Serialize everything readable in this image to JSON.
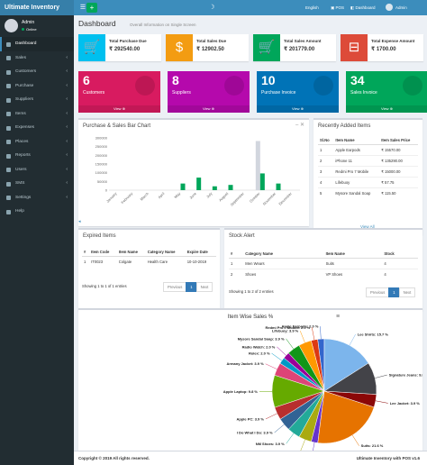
{
  "topbar": {
    "brand": "Ultimate Inventory",
    "menu_icon": "menu-icon",
    "add_icon": "plus-icon",
    "theme_icon": "moon-icon",
    "language": "English",
    "pos": "POS",
    "dashboard": "Dashboard",
    "user": "Admin"
  },
  "sidebar": {
    "user": {
      "name": "Admin",
      "status": "Online"
    },
    "items": [
      {
        "label": "Dashboard",
        "icon": "dashboard-icon",
        "chevron": ""
      },
      {
        "label": "Sales",
        "icon": "cart-icon",
        "chevron": "‹"
      },
      {
        "label": "Customers",
        "icon": "users-icon",
        "chevron": "‹"
      },
      {
        "label": "Purchase",
        "icon": "bag-icon",
        "chevron": "‹"
      },
      {
        "label": "Suppliers",
        "icon": "truck-icon",
        "chevron": "‹"
      },
      {
        "label": "Items",
        "icon": "cube-icon",
        "chevron": "‹"
      },
      {
        "label": "Expenses",
        "icon": "money-icon",
        "chevron": "‹"
      },
      {
        "label": "Places",
        "icon": "map-icon",
        "chevron": "‹"
      },
      {
        "label": "Reports",
        "icon": "chart-icon",
        "chevron": "‹"
      },
      {
        "label": "Users",
        "icon": "user-icon",
        "chevron": "‹"
      },
      {
        "label": "SMS",
        "icon": "envelope-icon",
        "chevron": "‹"
      },
      {
        "label": "Settings",
        "icon": "gear-icon",
        "chevron": "‹"
      },
      {
        "label": "Help",
        "icon": "help-icon",
        "chevron": ""
      }
    ]
  },
  "header": {
    "title": "Dashboard",
    "subtitle": "Overall Information on Single Screen"
  },
  "info_boxes": [
    {
      "label": "Total Purchase Due",
      "value": "₹ 292540.00",
      "color": "#00c0ef",
      "icon": "cart-icon",
      "glyph": "🛒"
    },
    {
      "label": "Total Sales Due",
      "value": "₹ 12902.50",
      "color": "#f39c12",
      "icon": "dollar-icon",
      "glyph": "$"
    },
    {
      "label": "Total Sales Amount",
      "value": "₹ 201779.00",
      "color": "#00a65a",
      "icon": "cart-plus-icon",
      "glyph": "🛒"
    },
    {
      "label": "Total Expense Amount",
      "value": "₹ 1700.00",
      "color": "#dd4b39",
      "icon": "minus-square-icon",
      "glyph": "⊟"
    }
  ],
  "small_boxes": [
    {
      "count": "6",
      "label": "Customers",
      "footer": "View ⊕",
      "color": "#d81b60",
      "icon": "users-icon"
    },
    {
      "count": "8",
      "label": "Suppliers",
      "footer": "View ⊕",
      "color": "#b509ac",
      "icon": "truck-icon"
    },
    {
      "count": "10",
      "label": "Purchase Invoice",
      "footer": "View ⊕",
      "color": "#0073b7",
      "icon": "file-icon"
    },
    {
      "count": "34",
      "label": "Sales Invoice",
      "footer": "View ⊕",
      "color": "#00a65a",
      "icon": "file-icon"
    }
  ],
  "bar_panel": {
    "title": "Purchase & Sales Bar Chart",
    "tools": "–  ✕"
  },
  "chart_data": [
    {
      "type": "bar",
      "title": "",
      "xlabel": "",
      "ylabel": "",
      "categories": [
        "January",
        "February",
        "March",
        "April",
        "May",
        "June",
        "July",
        "August",
        "September",
        "October",
        "November",
        "December"
      ],
      "y_ticks": [
        "0",
        "50000",
        "100000",
        "150000",
        "200000",
        "250000",
        "300000"
      ],
      "ylim": [
        0,
        300000
      ],
      "series": [
        {
          "color": "#d2d6de",
          "values": [
            0,
            0,
            0,
            0,
            0,
            0,
            0,
            0,
            0,
            282000,
            0,
            0
          ]
        },
        {
          "color": "#00a65a",
          "values": [
            0,
            0,
            0,
            0,
            38000,
            72000,
            22000,
            30000,
            0,
            96000,
            38000,
            0
          ]
        }
      ],
      "grid": false
    },
    {
      "type": "pie",
      "title": "Item Wise Sales %",
      "slices": [
        {
          "label": "Apple Earpods: 2.0 %",
          "value": 2.0,
          "color": "#3366cc"
        },
        {
          "label": "Redmi Pro 7 Mobile: 2.0 %",
          "value": 2.0,
          "color": "#dc3912"
        },
        {
          "label": "Lifebuoy: 3.9 %",
          "value": 3.9,
          "color": "#ff9900"
        },
        {
          "label": "Mysore Sandal Soap: 3.9 %",
          "value": 3.9,
          "color": "#109618"
        },
        {
          "label": "Radio Watch: 2.0 %",
          "value": 2.0,
          "color": "#990099"
        },
        {
          "label": "Rolex: 2.0 %",
          "value": 2.0,
          "color": "#0099c6"
        },
        {
          "label": "Armany Jacket: 3.9 %",
          "value": 3.9,
          "color": "#dd4477"
        },
        {
          "label": "Apple Laptop: 9.8 %",
          "value": 9.8,
          "color": "#66aa00"
        },
        {
          "label": "Apple PC: 3.9 %",
          "value": 3.9,
          "color": "#b82e2e"
        },
        {
          "label": "I Do What I Do: 3.9 %",
          "value": 3.9,
          "color": "#316395"
        },
        {
          "label": "NM Shoes: 3.9 %",
          "value": 3.9,
          "color": "#22aa99"
        },
        {
          "label": "VP Shoes: 3.9 %",
          "value": 3.9,
          "color": "#aaaa11"
        },
        {
          "label": "Bat Shoes: 2.0 %",
          "value": 2.0,
          "color": "#6633cc"
        },
        {
          "label": "Suits: 21.6 %",
          "value": 21.6,
          "color": "#e67300"
        },
        {
          "label": "Lee Jacket: 3.9 %",
          "value": 3.9,
          "color": "#8b0707"
        },
        {
          "label": "Signature Jeans: 9.8 %",
          "value": 9.8,
          "color": "#434348"
        },
        {
          "label": "Lee Shirts: 15.7 %",
          "value": 15.7,
          "color": "#7cb5ec"
        }
      ]
    }
  ],
  "recent": {
    "title": "Recently Added Items",
    "headers": [
      "Sl.No",
      "Item Name",
      "Item Sales Price"
    ],
    "rows": [
      [
        "1",
        "Apple Earpods",
        "₹ 15570.00"
      ],
      [
        "2",
        "iPhone 11",
        "₹ 135290.00"
      ],
      [
        "3",
        "Redmi Pro 7 Mobile",
        "₹ 15000.00"
      ],
      [
        "4",
        "Lifebuoy",
        "₹ 57.75"
      ],
      [
        "5",
        "Mysore Sandal Soap",
        "₹ 115.50"
      ]
    ],
    "view_all": "View All"
  },
  "expired": {
    "title": "Expired Items",
    "headers": [
      "#",
      "Item Code",
      "Item Name",
      "Category Name",
      "Expire Date"
    ],
    "rows": [
      [
        "1",
        "IT0023",
        "Colgate",
        "Health Care",
        "10-10-2019"
      ]
    ],
    "entries": "Showing 1 to 1 of 1 entries",
    "prev": "Previous",
    "page": "1",
    "next": "Next"
  },
  "stock": {
    "title": "Stock Alert",
    "headers": [
      "#",
      "Category Name",
      "Item Name",
      "Stock"
    ],
    "rows": [
      [
        "1",
        "Men Wears",
        "Suits",
        "4"
      ],
      [
        "2",
        "Shoes",
        "VP Shoes",
        "4"
      ]
    ],
    "entries": "Showing 1 to 2 of 2 entries",
    "prev": "Previous",
    "page": "1",
    "next": "Next"
  },
  "pie_menu": "≡",
  "footer": {
    "copyright": "Copyright © 2019 All rights reserved.",
    "version": "Ultimate Inventory with POS v1.6"
  }
}
